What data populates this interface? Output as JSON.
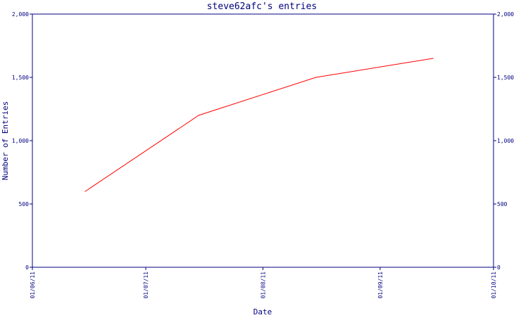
{
  "chart_data": {
    "type": "line",
    "title": "steve62afc's entries",
    "xlabel": "Date",
    "ylabel": "Number of Entries",
    "x_tick_labels": [
      "01/06/11",
      "01/07/11",
      "01/08/11",
      "01/09/11",
      "01/10/11"
    ],
    "x_ticks_days": [
      0,
      30,
      61,
      92,
      122
    ],
    "y_ticks": [
      0,
      500,
      1000,
      1500,
      2000
    ],
    "y_tick_labels": [
      "0",
      "500",
      "1,000",
      "1,500",
      "2,000"
    ],
    "ylim": [
      0,
      2000
    ],
    "grid": false,
    "series": [
      {
        "color": "#ff0000",
        "x": [
          "2011-06-15",
          "2011-07-15",
          "2011-08-15",
          "2011-09-15"
        ],
        "values": [
          600,
          1200,
          1500,
          1650
        ]
      }
    ]
  },
  "colors": {
    "axis": "#000080",
    "text": "#000080",
    "line": "#ff0000"
  }
}
